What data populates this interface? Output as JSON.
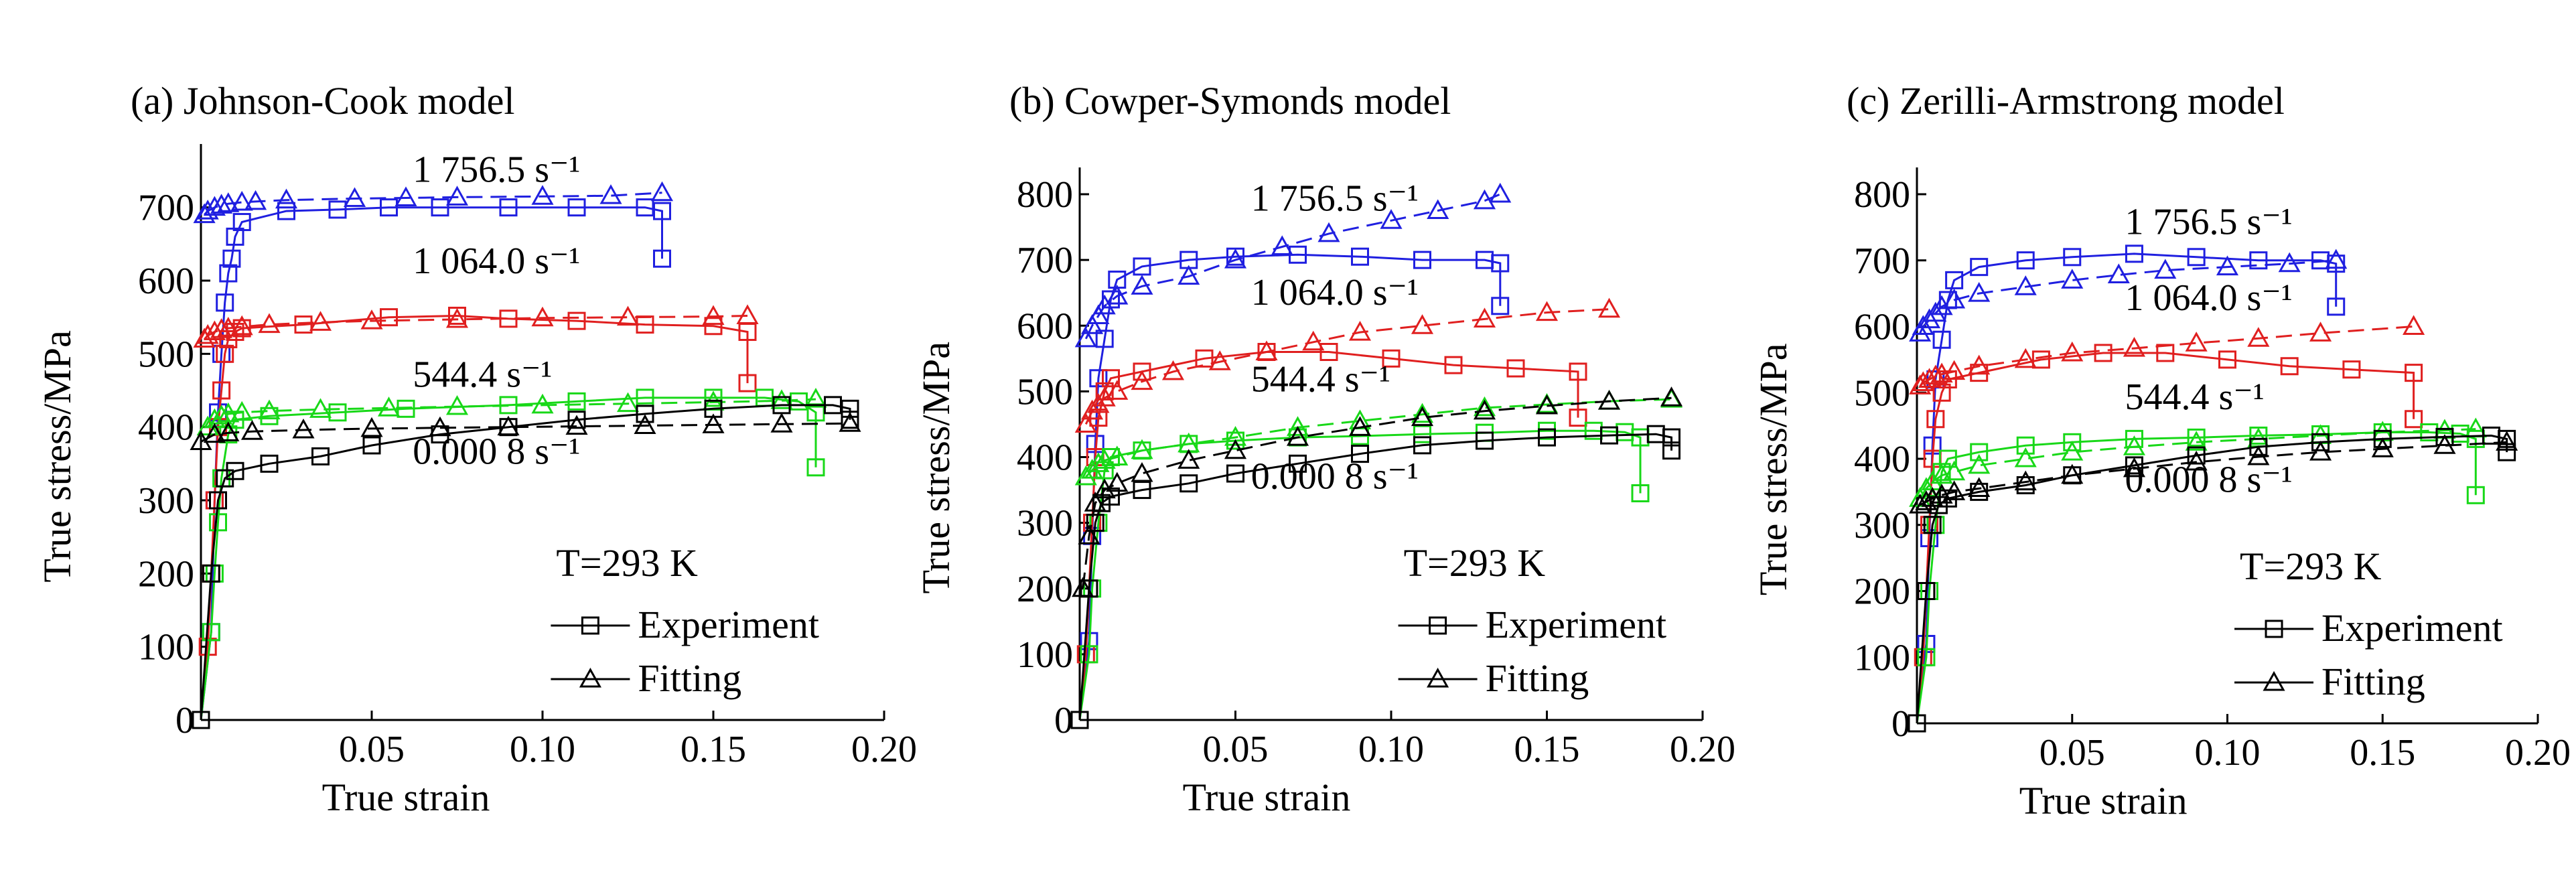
{
  "figure": {
    "temperature_label": "T=293 K",
    "legend": {
      "experiment": "Experiment",
      "fitting": "Fitting"
    },
    "colors": {
      "1756.5": "#1f1fe0",
      "1064.0": "#e01f1f",
      "544.4": "#18d818",
      "0.0008": "#000000"
    }
  },
  "chart_data": [
    {
      "type": "line",
      "title": "(a) Johnson-Cook model",
      "xlabel": "True strain",
      "ylabel": "True stress/MPa",
      "xlim": [
        0,
        0.2
      ],
      "ylim": [
        0,
        750
      ],
      "xticks": [
        "0.05",
        "0.10",
        "0.15",
        "0.20"
      ],
      "yticks": [
        "0",
        "100",
        "200",
        "300",
        "400",
        "500",
        "600",
        "700"
      ],
      "rate_labels": [
        {
          "text": "1 756.5 s⁻¹",
          "x": 0.062,
          "y": 735
        },
        {
          "text": "1 064.0 s⁻¹",
          "x": 0.062,
          "y": 610
        },
        {
          "text": "544.4 s⁻¹",
          "x": 0.062,
          "y": 455
        },
        {
          "text": "0.000 8 s⁻¹",
          "x": 0.062,
          "y": 350
        }
      ],
      "series": [
        {
          "rate": "1756.5",
          "kind": "experiment",
          "x": [
            0,
            0.003,
            0.004,
            0.005,
            0.006,
            0.007,
            0.008,
            0.009,
            0.01,
            0.012,
            0.025,
            0.04,
            0.055,
            0.07,
            0.09,
            0.11,
            0.13,
            0.135,
            0.135
          ],
          "y": [
            0,
            120,
            300,
            420,
            500,
            570,
            610,
            630,
            660,
            680,
            695,
            697,
            700,
            700,
            700,
            700,
            700,
            695,
            630
          ]
        },
        {
          "rate": "1756.5",
          "kind": "fitting",
          "x": [
            0.001,
            0.002,
            0.004,
            0.006,
            0.008,
            0.012,
            0.016,
            0.025,
            0.045,
            0.06,
            0.075,
            0.1,
            0.12,
            0.135
          ],
          "y": [
            690,
            695,
            700,
            703,
            705,
            707,
            708,
            710,
            712,
            713,
            714,
            715,
            716,
            720
          ]
        },
        {
          "rate": "1064.0",
          "kind": "experiment",
          "x": [
            0,
            0.002,
            0.003,
            0.004,
            0.005,
            0.006,
            0.007,
            0.008,
            0.01,
            0.012,
            0.03,
            0.055,
            0.075,
            0.09,
            0.11,
            0.13,
            0.15,
            0.16,
            0.16
          ],
          "y": [
            0,
            100,
            200,
            300,
            400,
            450,
            500,
            520,
            530,
            535,
            540,
            550,
            552,
            548,
            545,
            540,
            538,
            530,
            460
          ]
        },
        {
          "rate": "1064.0",
          "kind": "fitting",
          "x": [
            0.001,
            0.002,
            0.004,
            0.006,
            0.008,
            0.012,
            0.02,
            0.035,
            0.05,
            0.075,
            0.1,
            0.125,
            0.15,
            0.16
          ],
          "y": [
            520,
            525,
            530,
            533,
            535,
            537,
            540,
            543,
            545,
            547,
            549,
            550,
            551,
            552
          ]
        },
        {
          "rate": "544.4",
          "kind": "experiment",
          "x": [
            0,
            0.003,
            0.004,
            0.005,
            0.006,
            0.008,
            0.01,
            0.02,
            0.04,
            0.06,
            0.09,
            0.11,
            0.13,
            0.15,
            0.165,
            0.175,
            0.18,
            0.18
          ],
          "y": [
            0,
            120,
            200,
            270,
            330,
            390,
            410,
            415,
            420,
            425,
            430,
            435,
            440,
            440,
            440,
            435,
            420,
            345
          ]
        },
        {
          "rate": "544.4",
          "kind": "fitting",
          "x": [
            0.002,
            0.004,
            0.006,
            0.008,
            0.012,
            0.02,
            0.035,
            0.055,
            0.075,
            0.1,
            0.125,
            0.15,
            0.17,
            0.18
          ],
          "y": [
            400,
            410,
            415,
            418,
            420,
            422,
            424,
            426,
            428,
            430,
            432,
            434,
            436,
            438
          ]
        },
        {
          "rate": "0.0008",
          "kind": "experiment",
          "x": [
            0,
            0.003,
            0.005,
            0.007,
            0.01,
            0.02,
            0.035,
            0.05,
            0.07,
            0.09,
            0.11,
            0.13,
            0.15,
            0.17,
            0.185,
            0.19,
            0.19
          ],
          "y": [
            0,
            200,
            300,
            330,
            340,
            350,
            360,
            375,
            390,
            400,
            410,
            418,
            425,
            430,
            430,
            425,
            410
          ]
        },
        {
          "rate": "0.0008",
          "kind": "fitting",
          "x": [
            0,
            0.004,
            0.008,
            0.015,
            0.03,
            0.05,
            0.07,
            0.09,
            0.11,
            0.13,
            0.15,
            0.17,
            0.19
          ],
          "y": [
            380,
            390,
            392,
            394,
            396,
            398,
            399,
            400,
            401,
            402,
            403,
            404,
            405
          ]
        }
      ]
    },
    {
      "type": "line",
      "title": "(b) Cowper-Symonds model",
      "xlabel": "True strain",
      "ylabel": "True stress/MPa",
      "xlim": [
        0,
        0.2
      ],
      "ylim": [
        0,
        800
      ],
      "xticks": [
        "0.05",
        "0.10",
        "0.15",
        "0.20"
      ],
      "yticks": [
        "0",
        "100",
        "200",
        "300",
        "400",
        "500",
        "600",
        "700",
        "800"
      ],
      "rate_labels": [
        {
          "text": "1 756.5 s⁻¹",
          "x": 0.055,
          "y": 775
        },
        {
          "text": "1 064.0 s⁻¹",
          "x": 0.055,
          "y": 632
        },
        {
          "text": "544.4 s⁻¹",
          "x": 0.055,
          "y": 500
        },
        {
          "text": "0.000 8 s⁻¹",
          "x": 0.055,
          "y": 352
        }
      ],
      "series": [
        {
          "rate": "1756.5",
          "kind": "experiment",
          "x": [
            0,
            0.003,
            0.004,
            0.005,
            0.006,
            0.008,
            0.01,
            0.012,
            0.02,
            0.035,
            0.05,
            0.07,
            0.09,
            0.11,
            0.13,
            0.135,
            0.135
          ],
          "y": [
            0,
            120,
            280,
            420,
            520,
            580,
            640,
            670,
            690,
            700,
            705,
            708,
            705,
            700,
            700,
            695,
            630
          ]
        },
        {
          "rate": "1756.5",
          "kind": "fitting",
          "x": [
            0.002,
            0.004,
            0.006,
            0.008,
            0.012,
            0.02,
            0.035,
            0.05,
            0.065,
            0.08,
            0.1,
            0.115,
            0.13,
            0.135
          ],
          "y": [
            580,
            600,
            615,
            630,
            645,
            660,
            675,
            700,
            720,
            740,
            760,
            775,
            790,
            800
          ]
        },
        {
          "rate": "1064.0",
          "kind": "experiment",
          "x": [
            0,
            0.002,
            0.003,
            0.004,
            0.005,
            0.006,
            0.008,
            0.01,
            0.02,
            0.04,
            0.06,
            0.08,
            0.1,
            0.12,
            0.14,
            0.16,
            0.16
          ],
          "y": [
            0,
            100,
            200,
            300,
            400,
            460,
            500,
            520,
            530,
            550,
            560,
            560,
            550,
            540,
            535,
            530,
            460
          ]
        },
        {
          "rate": "1064.0",
          "kind": "fitting",
          "x": [
            0.002,
            0.004,
            0.006,
            0.008,
            0.012,
            0.02,
            0.03,
            0.045,
            0.06,
            0.075,
            0.09,
            0.11,
            0.13,
            0.15,
            0.17
          ],
          "y": [
            450,
            470,
            480,
            490,
            500,
            515,
            530,
            545,
            560,
            575,
            590,
            600,
            610,
            620,
            625
          ]
        },
        {
          "rate": "544.4",
          "kind": "experiment",
          "x": [
            0,
            0.003,
            0.004,
            0.006,
            0.008,
            0.01,
            0.02,
            0.035,
            0.05,
            0.07,
            0.09,
            0.11,
            0.13,
            0.15,
            0.165,
            0.175,
            0.18,
            0.18
          ],
          "y": [
            0,
            100,
            200,
            300,
            380,
            400,
            410,
            420,
            425,
            430,
            432,
            435,
            437,
            440,
            440,
            438,
            430,
            345
          ]
        },
        {
          "rate": "544.4",
          "kind": "fitting",
          "x": [
            0.002,
            0.004,
            0.006,
            0.008,
            0.012,
            0.02,
            0.035,
            0.05,
            0.07,
            0.09,
            0.11,
            0.13,
            0.15,
            0.17,
            0.19
          ],
          "y": [
            370,
            380,
            390,
            395,
            400,
            410,
            420,
            430,
            445,
            455,
            465,
            475,
            480,
            485,
            488
          ]
        },
        {
          "rate": "0.0008",
          "kind": "experiment",
          "x": [
            0,
            0.003,
            0.005,
            0.007,
            0.01,
            0.02,
            0.035,
            0.05,
            0.07,
            0.09,
            0.11,
            0.13,
            0.15,
            0.17,
            0.185,
            0.19,
            0.19
          ],
          "y": [
            0,
            200,
            300,
            330,
            340,
            350,
            360,
            375,
            390,
            405,
            418,
            425,
            430,
            433,
            435,
            430,
            410
          ]
        },
        {
          "rate": "0.0008",
          "kind": "fitting",
          "x": [
            0.001,
            0.003,
            0.005,
            0.008,
            0.012,
            0.02,
            0.035,
            0.05,
            0.07,
            0.09,
            0.11,
            0.13,
            0.15,
            0.17,
            0.19
          ],
          "y": [
            200,
            280,
            330,
            350,
            360,
            375,
            395,
            410,
            430,
            445,
            460,
            470,
            478,
            485,
            490
          ]
        }
      ]
    },
    {
      "type": "line",
      "title": "(c) Zerilli-Armstrong model",
      "xlabel": "True strain",
      "ylabel": "True stress/MPa",
      "xlim": [
        0,
        0.2
      ],
      "ylim": [
        0,
        800
      ],
      "xticks": [
        "0.05",
        "0.10",
        "0.15",
        "0.20"
      ],
      "yticks": [
        "0",
        "100",
        "200",
        "300",
        "400",
        "500",
        "600",
        "700",
        "800"
      ],
      "rate_labels": [
        {
          "text": "1 756.5 s⁻¹",
          "x": 0.067,
          "y": 740
        },
        {
          "text": "1 064.0 s⁻¹",
          "x": 0.067,
          "y": 625
        },
        {
          "text": "544.4 s⁻¹",
          "x": 0.067,
          "y": 475
        },
        {
          "text": "0.000 8 s⁻¹",
          "x": 0.067,
          "y": 350
        }
      ],
      "series": [
        {
          "rate": "1756.5",
          "kind": "experiment",
          "x": [
            0,
            0.003,
            0.004,
            0.005,
            0.006,
            0.008,
            0.01,
            0.012,
            0.02,
            0.035,
            0.05,
            0.07,
            0.09,
            0.11,
            0.13,
            0.135,
            0.135
          ],
          "y": [
            0,
            120,
            280,
            420,
            520,
            580,
            640,
            670,
            690,
            700,
            705,
            710,
            705,
            700,
            700,
            695,
            630
          ]
        },
        {
          "rate": "1756.5",
          "kind": "fitting",
          "x": [
            0.001,
            0.002,
            0.004,
            0.006,
            0.008,
            0.012,
            0.02,
            0.035,
            0.05,
            0.065,
            0.08,
            0.1,
            0.12,
            0.135
          ],
          "y": [
            590,
            600,
            610,
            620,
            630,
            640,
            650,
            660,
            670,
            678,
            685,
            690,
            695,
            700
          ]
        },
        {
          "rate": "1064.0",
          "kind": "experiment",
          "x": [
            0,
            0.002,
            0.003,
            0.004,
            0.005,
            0.006,
            0.008,
            0.01,
            0.02,
            0.04,
            0.06,
            0.08,
            0.1,
            0.12,
            0.14,
            0.16,
            0.16
          ],
          "y": [
            0,
            100,
            200,
            300,
            400,
            460,
            500,
            520,
            530,
            550,
            560,
            560,
            550,
            540,
            535,
            530,
            460
          ]
        },
        {
          "rate": "1064.0",
          "kind": "fitting",
          "x": [
            0.001,
            0.002,
            0.004,
            0.006,
            0.008,
            0.012,
            0.02,
            0.035,
            0.05,
            0.07,
            0.09,
            0.11,
            0.13,
            0.16
          ],
          "y": [
            510,
            515,
            520,
            525,
            528,
            532,
            540,
            550,
            560,
            567,
            575,
            582,
            590,
            600
          ]
        },
        {
          "rate": "544.4",
          "kind": "experiment",
          "x": [
            0,
            0.003,
            0.004,
            0.006,
            0.008,
            0.01,
            0.02,
            0.035,
            0.05,
            0.07,
            0.09,
            0.11,
            0.13,
            0.15,
            0.165,
            0.175,
            0.18,
            0.18
          ],
          "y": [
            0,
            100,
            200,
            300,
            380,
            400,
            410,
            420,
            425,
            430,
            432,
            435,
            437,
            440,
            440,
            438,
            430,
            345
          ]
        },
        {
          "rate": "544.4",
          "kind": "fitting",
          "x": [
            0.001,
            0.003,
            0.005,
            0.008,
            0.012,
            0.02,
            0.035,
            0.05,
            0.07,
            0.09,
            0.11,
            0.13,
            0.15,
            0.17,
            0.18
          ],
          "y": [
            340,
            355,
            365,
            375,
            380,
            390,
            400,
            410,
            418,
            425,
            430,
            435,
            440,
            443,
            445
          ]
        },
        {
          "rate": "0.0008",
          "kind": "experiment",
          "x": [
            0,
            0.003,
            0.005,
            0.007,
            0.01,
            0.02,
            0.035,
            0.05,
            0.07,
            0.09,
            0.11,
            0.13,
            0.15,
            0.17,
            0.185,
            0.19,
            0.19
          ],
          "y": [
            0,
            200,
            300,
            330,
            340,
            350,
            360,
            375,
            390,
            405,
            418,
            425,
            430,
            433,
            435,
            430,
            410
          ]
        },
        {
          "rate": "0.0008",
          "kind": "fitting",
          "x": [
            0.001,
            0.003,
            0.005,
            0.008,
            0.012,
            0.02,
            0.035,
            0.05,
            0.07,
            0.09,
            0.11,
            0.13,
            0.15,
            0.17,
            0.19
          ],
          "y": [
            330,
            335,
            340,
            345,
            350,
            355,
            365,
            375,
            385,
            395,
            403,
            410,
            415,
            420,
            425
          ]
        }
      ]
    }
  ]
}
